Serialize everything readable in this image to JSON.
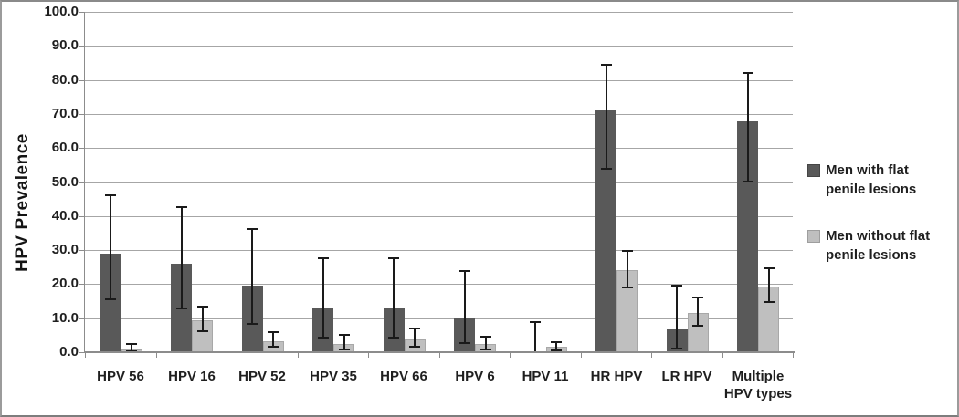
{
  "chart_data": {
    "type": "bar",
    "title": "",
    "xlabel": "",
    "ylabel": "HPV Prevalence",
    "ylim": [
      0,
      100
    ],
    "ytick_step": 10,
    "yticks": [
      "100.0",
      "90.0",
      "80.0",
      "70.0",
      "60.0",
      "50.0",
      "40.0",
      "30.0",
      "20.0",
      "10.0",
      "0.0"
    ],
    "grid": true,
    "legend_position": "right",
    "categories": [
      "HPV 56",
      "HPV 16",
      "HPV 52",
      "HPV 35",
      "HPV 66",
      "HPV 6",
      "HPV 11",
      "HR HPV",
      "LR HPV",
      "Multiple HPV types"
    ],
    "series": [
      {
        "name": "Men with flat penile lesions",
        "legend_lines": [
          "Men with flat",
          "penile lesions"
        ],
        "color": "#595959",
        "values": [
          28.9,
          25.9,
          19.7,
          12.9,
          12.9,
          9.8,
          0.0,
          71.0,
          6.7,
          67.8
        ],
        "err_high": [
          46.5,
          43.0,
          36.5,
          28.0,
          28.0,
          24.0,
          9.2,
          84.8,
          19.8,
          82.2
        ],
        "err_low": [
          15.5,
          13.0,
          8.3,
          4.2,
          4.2,
          2.6,
          0.0,
          53.8,
          1.2,
          50.2
        ]
      },
      {
        "name": "Men without flat penile lesions",
        "legend_lines": [
          "Men without flat",
          "penile lesions"
        ],
        "color": "#bfbfbf",
        "values": [
          0.8,
          9.4,
          3.3,
          2.5,
          3.8,
          2.3,
          1.5,
          24.2,
          11.5,
          19.3
        ],
        "err_high": [
          2.6,
          13.8,
          6.3,
          5.3,
          7.2,
          4.8,
          3.3,
          30.0,
          16.4,
          24.8
        ],
        "err_low": [
          0.2,
          6.2,
          1.6,
          0.9,
          1.7,
          0.8,
          0.5,
          19.0,
          7.7,
          14.8
        ]
      }
    ],
    "error_bar_color": "#1a1a1a"
  },
  "colors": {
    "gridline": "#a6a6a6",
    "axis": "#8c8c8c",
    "frame": "#9b9b9b",
    "text": "#1f1f1f"
  }
}
